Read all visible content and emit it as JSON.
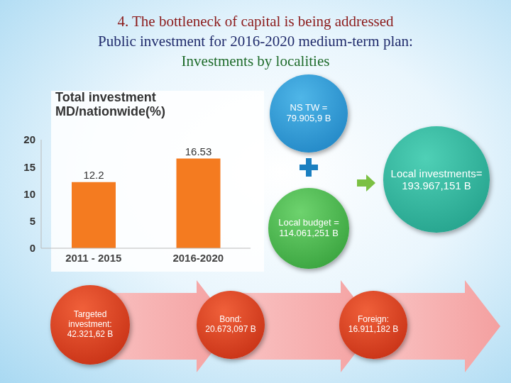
{
  "header": {
    "lines": [
      "4. The bottleneck of capital is being addressed",
      "Public investment for 2016-2020 medium-term plan:",
      "Investments by localities"
    ]
  },
  "chart_data": {
    "type": "bar",
    "title": "Total investment MD/nationwide(%)",
    "categories": [
      "2011 - 2015",
      "2016-2020"
    ],
    "values": [
      12.2,
      16.53
    ],
    "color": "#f47b20",
    "ylim": [
      0,
      20
    ],
    "yticks": [
      0,
      5,
      10,
      15,
      20
    ],
    "grid": false,
    "data_labels": true
  },
  "diagram": {
    "nodes": [
      {
        "label": "NS TW =",
        "value": "79.905,9 B"
      },
      {
        "label": "Local budget =",
        "value": "114.061,251 B"
      },
      {
        "label": "Local investments=",
        "value": "193.967,151 B"
      }
    ],
    "sources": [
      {
        "label": "Targeted investment:",
        "value": "42.321,62 B"
      },
      {
        "label": "Bond:",
        "value": "20.673,097 B"
      },
      {
        "label": "Foreign:",
        "value": "16.911,182 B"
      }
    ]
  }
}
